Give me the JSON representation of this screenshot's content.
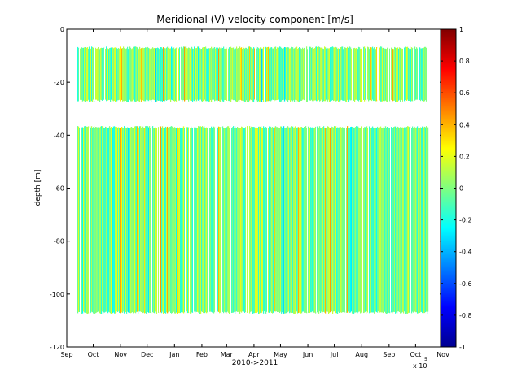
{
  "chart_data": {
    "type": "heatmap",
    "title": "Meridional (V) velocity component [m/s]",
    "xlabel": "2010->2011",
    "ylabel": "depth [m]",
    "x_exponent_label": "x 10",
    "x_exponent_power": "5",
    "x_ticks": [
      "Sep",
      "Oct",
      "Nov",
      "Dec",
      "Jan",
      "Feb",
      "Mar",
      "Apr",
      "May",
      "Jun",
      "Jul",
      "Aug",
      "Sep",
      "Oct",
      "Nov"
    ],
    "x_tick_days": [
      0,
      30,
      61,
      91,
      122,
      153,
      181,
      212,
      242,
      273,
      303,
      334,
      365,
      395,
      426
    ],
    "y_ticks": [
      "0",
      "-20",
      "-40",
      "-60",
      "-80",
      "-100",
      "-120"
    ],
    "y_tick_values": [
      0,
      -20,
      -40,
      -60,
      -80,
      -100,
      -120
    ],
    "ylim": [
      -120,
      0
    ],
    "x_data_range_days": [
      12,
      409
    ],
    "depth_bands": [
      {
        "top": -7,
        "bottom": -27
      },
      {
        "top": -37,
        "bottom": -107
      }
    ],
    "dominant_value": 0.0,
    "colorbar": {
      "colormap": "jet",
      "range": [
        -1,
        1
      ],
      "ticks": [
        "1",
        "0.8",
        "0.6",
        "0.4",
        "0.2",
        "0",
        "-0.2",
        "-0.4",
        "-0.6",
        "-0.8",
        "-1"
      ],
      "tick_values": [
        1,
        0.8,
        0.6,
        0.4,
        0.2,
        0,
        -0.2,
        -0.4,
        -0.6,
        -0.8,
        -1
      ]
    },
    "grid": false
  }
}
